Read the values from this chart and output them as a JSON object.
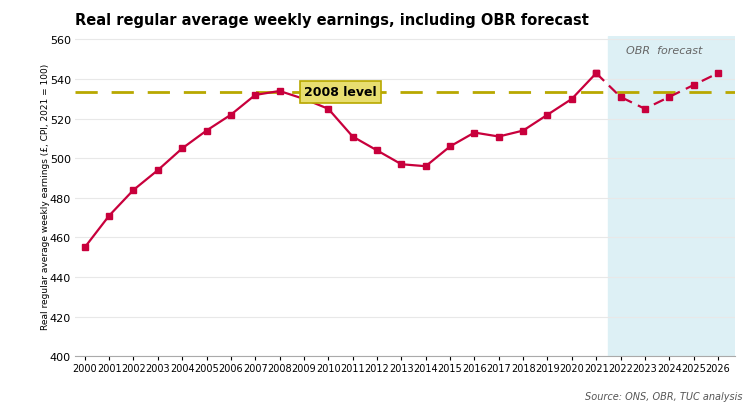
{
  "title": "Real regular average weekly earnings, including OBR forecast",
  "ylabel": "Real regular average weekly earnings (£, CPI, 2021 = 100)",
  "source": "Source: ONS, OBR, TUC analysis",
  "obr_label": "OBR  forecast",
  "level_label": "2008 level",
  "level_value": 533.5,
  "ylim": [
    400,
    562
  ],
  "yticks": [
    400,
    420,
    440,
    460,
    480,
    500,
    520,
    540,
    560
  ],
  "actual_years": [
    2000,
    2001,
    2002,
    2003,
    2004,
    2005,
    2006,
    2007,
    2008,
    2009,
    2010,
    2011,
    2012,
    2013,
    2014,
    2015,
    2016,
    2017,
    2018,
    2019,
    2020,
    2021
  ],
  "actual_values": [
    455,
    471,
    484,
    494,
    505,
    514,
    522,
    532,
    534,
    530,
    525,
    511,
    504,
    497,
    496,
    506,
    513,
    511,
    514,
    522,
    530,
    543
  ],
  "forecast_years": [
    2021,
    2022,
    2023,
    2024,
    2025,
    2026
  ],
  "forecast_values": [
    543,
    531,
    525,
    531,
    537,
    543
  ],
  "line_color": "#c8003c",
  "marker_color": "#c8003c",
  "forecast_bg": "#ddf0f5",
  "dashed_color": "#b8a800",
  "bg_color": "#ffffff",
  "plot_bg": "#ffffff",
  "grid_color": "#e8e8e8"
}
